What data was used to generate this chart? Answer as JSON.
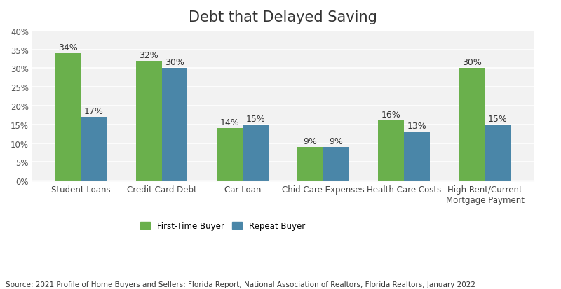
{
  "title": "Debt that Delayed Saving",
  "categories": [
    "Student Loans",
    "Credit Card Debt",
    "Car Loan",
    "Chid Care Expenses",
    "Health Care Costs",
    "High Rent/Current\nMortgage Payment"
  ],
  "first_time_buyer": [
    34,
    32,
    14,
    9,
    16,
    30
  ],
  "repeat_buyer": [
    17,
    30,
    15,
    9,
    13,
    15
  ],
  "first_time_color": "#6ab04c",
  "repeat_color": "#4a86a8",
  "fig_background_color": "#ffffff",
  "plot_background_color": "#f2f2f2",
  "ylim": [
    0,
    40
  ],
  "yticks": [
    0,
    5,
    10,
    15,
    20,
    25,
    30,
    35,
    40
  ],
  "bar_width": 0.32,
  "legend_labels": [
    "First-Time Buyer",
    "Repeat Buyer"
  ],
  "source_text": "Source: 2021 Profile of Home Buyers and Sellers: Florida Report, National Association of Realtors, Florida Realtors, January 2022",
  "title_fontsize": 15,
  "tick_fontsize": 8.5,
  "label_fontsize": 9,
  "source_fontsize": 7.5
}
